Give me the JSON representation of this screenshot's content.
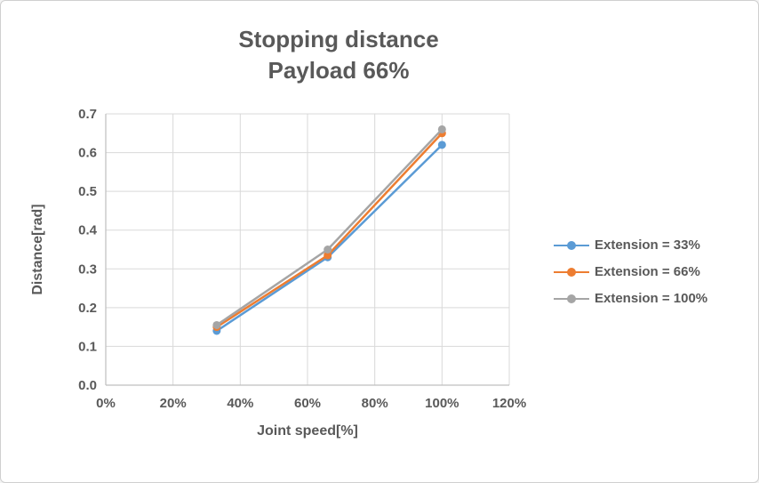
{
  "window": {
    "background": "#FFFFFF",
    "border_color": "#CFCFCF"
  },
  "styles": {
    "text_color": "#595959",
    "gridline_color": "#D9D9D9",
    "axis_color": "#BFBFBF"
  },
  "chart_data": {
    "type": "line",
    "title": "Stopping distance",
    "subtitle": "Payload 66%",
    "xlabel": "Joint speed[%]",
    "ylabel": "Distance[rad]",
    "xlim": [
      0,
      120
    ],
    "ylim": [
      0,
      0.7
    ],
    "grid": true,
    "legend_position": "right",
    "marker": "circle",
    "x_ticks": [
      "0%",
      "20%",
      "40%",
      "60%",
      "80%",
      "100%",
      "120%"
    ],
    "x_tick_values": [
      0,
      20,
      40,
      60,
      80,
      100,
      120
    ],
    "y_ticks": [
      "0.0",
      "0.1",
      "0.2",
      "0.3",
      "0.4",
      "0.5",
      "0.6",
      "0.7"
    ],
    "y_tick_values": [
      0,
      0.1,
      0.2,
      0.3,
      0.4,
      0.5,
      0.6,
      0.7
    ],
    "x": [
      33,
      66,
      100
    ],
    "series": [
      {
        "name": "Extension = 33%",
        "color": "#5B9BD5",
        "values": [
          0.14,
          0.33,
          0.62
        ]
      },
      {
        "name": "Extension = 66%",
        "color": "#ED7D31",
        "values": [
          0.15,
          0.335,
          0.65
        ]
      },
      {
        "name": "Extension = 100%",
        "color": "#A5A5A5",
        "values": [
          0.155,
          0.35,
          0.66
        ]
      }
    ]
  }
}
